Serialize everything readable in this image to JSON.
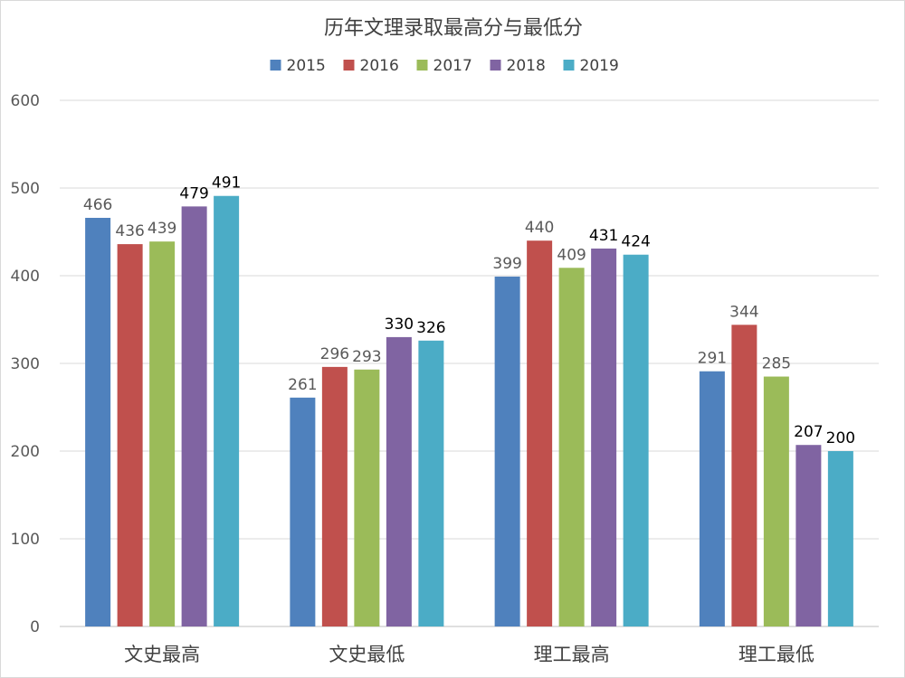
{
  "chart_data": {
    "type": "bar",
    "title": "历年文理录取最高分与最低分",
    "categories": [
      "文史最高",
      "文史最低",
      "理工最高",
      "理工最低"
    ],
    "series": [
      {
        "name": "2015",
        "color": "#4f81bd",
        "values": [
          466,
          261,
          399,
          291
        ]
      },
      {
        "name": "2016",
        "color": "#c0504d",
        "values": [
          436,
          296,
          440,
          344
        ]
      },
      {
        "name": "2017",
        "color": "#9bbb59",
        "values": [
          439,
          293,
          409,
          285
        ]
      },
      {
        "name": "2018",
        "color": "#8064a2",
        "values": [
          479,
          330,
          431,
          207
        ]
      },
      {
        "name": "2019",
        "color": "#4bacc6",
        "values": [
          491,
          326,
          424,
          200
        ]
      }
    ],
    "ylim": [
      0,
      600
    ],
    "yticks": [
      0,
      100,
      200,
      300,
      400,
      500,
      600
    ],
    "xlabel": "",
    "ylabel": "",
    "legend_position": "top",
    "grid": true,
    "label_colors": [
      "#595959",
      "#595959",
      "#595959",
      "#000000",
      "#000000"
    ]
  }
}
